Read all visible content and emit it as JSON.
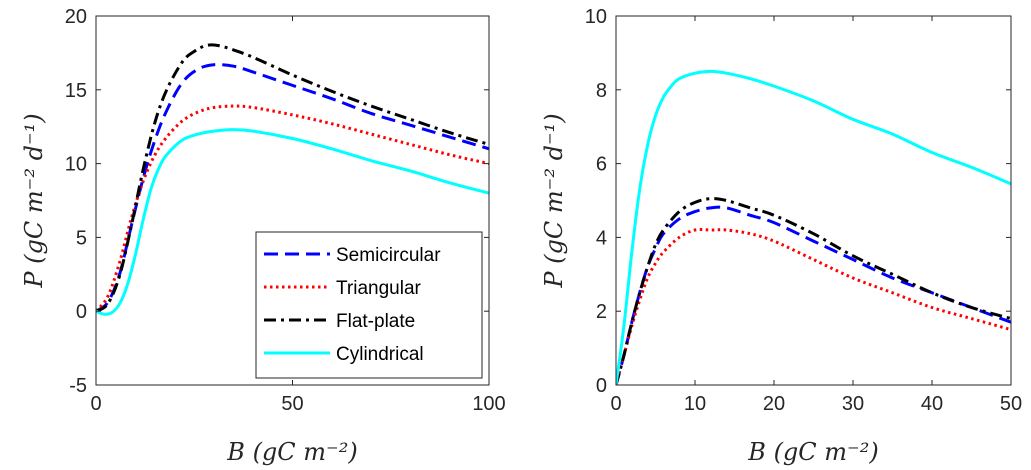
{
  "chart_data": [
    {
      "type": "line",
      "xlabel": "B (gC m⁻²)",
      "ylabel": "P (gC m⁻² d⁻¹)",
      "xlim": [
        0,
        100
      ],
      "ylim": [
        -5,
        20
      ],
      "xticks": [
        0,
        50,
        100
      ],
      "yticks": [
        -5,
        0,
        5,
        10,
        15,
        20
      ],
      "ytick_labels": [
        "-5",
        "0",
        "5",
        "10",
        "15",
        "20"
      ],
      "grid": false,
      "legend": "bottom-right",
      "series": [
        {
          "name": "Semicircular",
          "color": "#0000ff",
          "dash": "dashed",
          "x": [
            0,
            3,
            6,
            9,
            12,
            15,
            18,
            22,
            26,
            30,
            35,
            40,
            50,
            60,
            70,
            80,
            90,
            100
          ],
          "y": [
            0,
            0.6,
            2.5,
            5.8,
            9.0,
            11.6,
            13.6,
            15.5,
            16.4,
            16.7,
            16.6,
            16.2,
            15.3,
            14.4,
            13.4,
            12.6,
            11.8,
            11.0
          ]
        },
        {
          "name": "Triangular",
          "color": "#ff0000",
          "dash": "dotted",
          "x": [
            0,
            3,
            6,
            9,
            12,
            15,
            18,
            22,
            26,
            30,
            35,
            40,
            50,
            60,
            70,
            80,
            90,
            100
          ],
          "y": [
            0,
            1.0,
            3.3,
            6.3,
            8.8,
            10.6,
            11.8,
            12.9,
            13.5,
            13.8,
            13.9,
            13.8,
            13.3,
            12.7,
            12.0,
            11.3,
            10.6,
            10.0
          ]
        },
        {
          "name": "Flat-plate",
          "color": "#000000",
          "dash": "dashdot",
          "x": [
            0,
            3,
            6,
            9,
            12,
            15,
            18,
            22,
            25,
            28,
            31,
            35,
            40,
            50,
            60,
            70,
            80,
            90,
            100
          ],
          "y": [
            0,
            0.5,
            2.4,
            5.8,
            9.6,
            12.8,
            15.0,
            16.9,
            17.6,
            18.0,
            18.0,
            17.7,
            17.2,
            16.0,
            14.9,
            13.9,
            13.0,
            12.1,
            11.3
          ]
        },
        {
          "name": "Cylindrical",
          "color": "#00ffff",
          "dash": "solid",
          "x": [
            0,
            2,
            4,
            6,
            8,
            10,
            12,
            14,
            16,
            18,
            22,
            26,
            30,
            35,
            40,
            50,
            60,
            70,
            80,
            90,
            100
          ],
          "y": [
            0,
            -0.2,
            -0.1,
            0.5,
            1.8,
            3.8,
            6.2,
            8.3,
            9.7,
            10.6,
            11.6,
            12.0,
            12.2,
            12.3,
            12.2,
            11.7,
            11.0,
            10.2,
            9.5,
            8.7,
            8.0
          ]
        }
      ]
    },
    {
      "type": "line",
      "xlabel": "B (gC m⁻²)",
      "ylabel": "P (gC m⁻² d⁻¹)",
      "xlim": [
        0,
        50
      ],
      "ylim": [
        0,
        10
      ],
      "xticks": [
        0,
        10,
        20,
        30,
        40,
        50
      ],
      "yticks": [
        0,
        2,
        4,
        6,
        8,
        10
      ],
      "ytick_labels": [
        "0",
        "2",
        "4",
        "6",
        "8",
        "10"
      ],
      "grid": false,
      "legend": "none",
      "series": [
        {
          "name": "Semicircular",
          "color": "#0000ff",
          "dash": "dashed",
          "x": [
            0,
            1,
            2,
            3,
            4,
            5,
            6,
            8,
            10,
            12,
            14,
            17,
            20,
            25,
            30,
            35,
            40,
            45,
            50
          ],
          "y": [
            0,
            0.8,
            1.7,
            2.5,
            3.2,
            3.7,
            4.1,
            4.5,
            4.7,
            4.8,
            4.8,
            4.6,
            4.4,
            3.9,
            3.4,
            2.9,
            2.5,
            2.1,
            1.7
          ]
        },
        {
          "name": "Triangular",
          "color": "#ff0000",
          "dash": "dotted",
          "x": [
            0,
            1,
            2,
            3,
            4,
            5,
            6,
            8,
            10,
            12,
            14,
            17,
            20,
            25,
            30,
            35,
            40,
            45,
            50
          ],
          "y": [
            0,
            0.8,
            1.6,
            2.3,
            2.9,
            3.3,
            3.6,
            4.0,
            4.2,
            4.2,
            4.2,
            4.1,
            3.9,
            3.4,
            2.9,
            2.5,
            2.1,
            1.8,
            1.5
          ]
        },
        {
          "name": "Flat-plate",
          "color": "#000000",
          "dash": "dashdot",
          "x": [
            0,
            1,
            2,
            3,
            4,
            5,
            6,
            8,
            10,
            12,
            14,
            17,
            20,
            25,
            30,
            35,
            40,
            45,
            50
          ],
          "y": [
            0,
            0.8,
            1.7,
            2.5,
            3.2,
            3.8,
            4.2,
            4.7,
            4.95,
            5.05,
            5.0,
            4.8,
            4.6,
            4.1,
            3.5,
            3.0,
            2.5,
            2.1,
            1.8
          ]
        },
        {
          "name": "Cylindrical",
          "color": "#00ffff",
          "dash": "solid",
          "x": [
            0,
            1,
            2,
            3,
            4,
            5,
            6,
            7,
            8,
            10,
            12,
            14,
            17,
            20,
            25,
            30,
            35,
            40,
            45,
            50
          ],
          "y": [
            0,
            1.6,
            3.6,
            5.3,
            6.5,
            7.3,
            7.8,
            8.1,
            8.3,
            8.45,
            8.5,
            8.45,
            8.3,
            8.1,
            7.7,
            7.2,
            6.8,
            6.3,
            5.9,
            5.45
          ]
        }
      ]
    }
  ]
}
